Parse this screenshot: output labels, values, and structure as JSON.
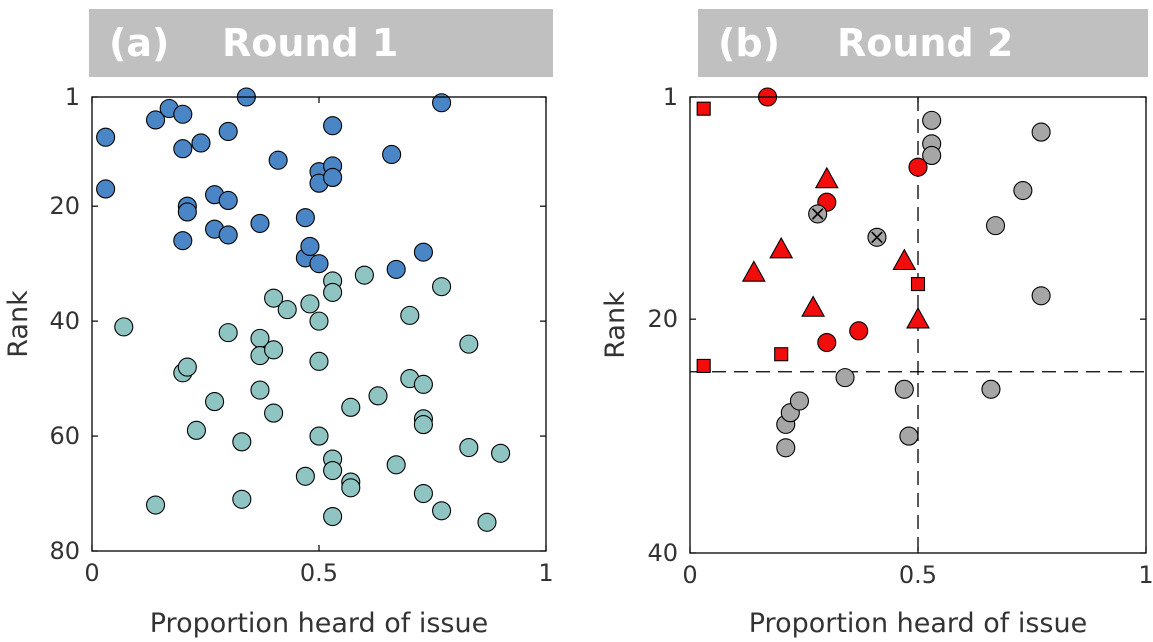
{
  "panels": [
    {
      "label": "(a)",
      "title": "Round 1"
    },
    {
      "label": "(b)",
      "title": "Round 2"
    }
  ],
  "colors": {
    "panel_a_top": "#4a86c6",
    "panel_a_rest": "#8ec4c2",
    "red": "#f20d0d",
    "gray": "#a6a6a6",
    "banner": "#c0c0c0"
  },
  "chart_data": [
    {
      "type": "scatter",
      "xlabel": "Proportion heard of issue",
      "ylabel": "Rank",
      "xlim": [
        0,
        1
      ],
      "ylim": [
        80,
        1
      ],
      "y_reversed": true,
      "xticks": [
        "0",
        "0.5",
        "1"
      ],
      "yticks": [
        "1",
        "20",
        "40",
        "60",
        "80"
      ],
      "grid": false,
      "series": [
        {
          "color": "#4a86c6",
          "points": [
            [
              0.03,
              8
            ],
            [
              0.03,
              17
            ],
            [
              0.14,
              5
            ],
            [
              0.17,
              3
            ],
            [
              0.2,
              4
            ],
            [
              0.2,
              10
            ],
            [
              0.24,
              9
            ],
            [
              0.3,
              7
            ],
            [
              0.34,
              1
            ],
            [
              0.2,
              26
            ],
            [
              0.21,
              20
            ],
            [
              0.21,
              21
            ],
            [
              0.27,
              18
            ],
            [
              0.27,
              24
            ],
            [
              0.3,
              19
            ],
            [
              0.3,
              25
            ],
            [
              0.37,
              23
            ],
            [
              0.41,
              12
            ],
            [
              0.47,
              22
            ],
            [
              0.47,
              29
            ],
            [
              0.48,
              27
            ],
            [
              0.5,
              14
            ],
            [
              0.5,
              16
            ],
            [
              0.5,
              30
            ],
            [
              0.53,
              6
            ],
            [
              0.53,
              13
            ],
            [
              0.53,
              15
            ],
            [
              0.66,
              11
            ],
            [
              0.67,
              31
            ],
            [
              0.73,
              28
            ],
            [
              0.77,
              2
            ]
          ]
        },
        {
          "color": "#8ec4c2",
          "points": [
            [
              0.07,
              41
            ],
            [
              0.14,
              72
            ],
            [
              0.2,
              49
            ],
            [
              0.21,
              48
            ],
            [
              0.23,
              59
            ],
            [
              0.27,
              54
            ],
            [
              0.3,
              42
            ],
            [
              0.33,
              61
            ],
            [
              0.33,
              71
            ],
            [
              0.37,
              43
            ],
            [
              0.37,
              46
            ],
            [
              0.37,
              52
            ],
            [
              0.4,
              36
            ],
            [
              0.4,
              45
            ],
            [
              0.4,
              56
            ],
            [
              0.43,
              38
            ],
            [
              0.47,
              67
            ],
            [
              0.48,
              37
            ],
            [
              0.5,
              40
            ],
            [
              0.5,
              47
            ],
            [
              0.5,
              60
            ],
            [
              0.53,
              33
            ],
            [
              0.53,
              35
            ],
            [
              0.53,
              64
            ],
            [
              0.53,
              66
            ],
            [
              0.53,
              74
            ],
            [
              0.57,
              55
            ],
            [
              0.57,
              68
            ],
            [
              0.57,
              69
            ],
            [
              0.6,
              32
            ],
            [
              0.63,
              53
            ],
            [
              0.67,
              65
            ],
            [
              0.7,
              39
            ],
            [
              0.7,
              50
            ],
            [
              0.73,
              51
            ],
            [
              0.73,
              57
            ],
            [
              0.73,
              58
            ],
            [
              0.73,
              70
            ],
            [
              0.77,
              34
            ],
            [
              0.77,
              73
            ],
            [
              0.83,
              44
            ],
            [
              0.83,
              62
            ],
            [
              0.87,
              75
            ],
            [
              0.9,
              63
            ]
          ]
        }
      ]
    },
    {
      "type": "scatter",
      "xlabel": "Proportion heard of issue",
      "ylabel": "Rank",
      "xlim": [
        0,
        1
      ],
      "ylim": [
        40,
        1
      ],
      "y_reversed": true,
      "xticks": [
        "0",
        "0.5",
        "1"
      ],
      "yticks": [
        "1",
        "20",
        "40"
      ],
      "grid": false,
      "reference_lines": {
        "x": 0.5,
        "y": 24.5,
        "style": "dashed"
      },
      "series": [
        {
          "marker": "circle",
          "color": "#f20d0d",
          "points": [
            [
              0.17,
              1
            ],
            [
              0.3,
              10
            ],
            [
              0.3,
              22
            ],
            [
              0.37,
              21
            ],
            [
              0.5,
              7
            ]
          ]
        },
        {
          "marker": "triangle",
          "color": "#f20d0d",
          "points": [
            [
              0.14,
              16
            ],
            [
              0.2,
              14
            ],
            [
              0.27,
              19
            ],
            [
              0.3,
              8
            ],
            [
              0.47,
              15
            ],
            [
              0.5,
              20
            ]
          ]
        },
        {
          "marker": "square",
          "color": "#f20d0d",
          "points": [
            [
              0.03,
              2
            ],
            [
              0.03,
              24
            ],
            [
              0.2,
              23
            ],
            [
              0.5,
              17
            ]
          ]
        },
        {
          "marker": "circle",
          "color": "#a6a6a6",
          "points": [
            [
              0.21,
              29
            ],
            [
              0.21,
              31
            ],
            [
              0.22,
              28
            ],
            [
              0.24,
              27
            ],
            [
              0.34,
              25
            ],
            [
              0.47,
              26
            ],
            [
              0.48,
              30
            ],
            [
              0.53,
              3
            ],
            [
              0.53,
              5
            ],
            [
              0.53,
              6
            ],
            [
              0.66,
              26
            ],
            [
              0.67,
              12
            ],
            [
              0.73,
              9
            ],
            [
              0.77,
              4
            ],
            [
              0.77,
              18
            ]
          ]
        },
        {
          "marker": "circle-x",
          "color": "#a6a6a6",
          "points": [
            [
              0.28,
              11
            ],
            [
              0.41,
              13
            ]
          ]
        }
      ]
    }
  ]
}
